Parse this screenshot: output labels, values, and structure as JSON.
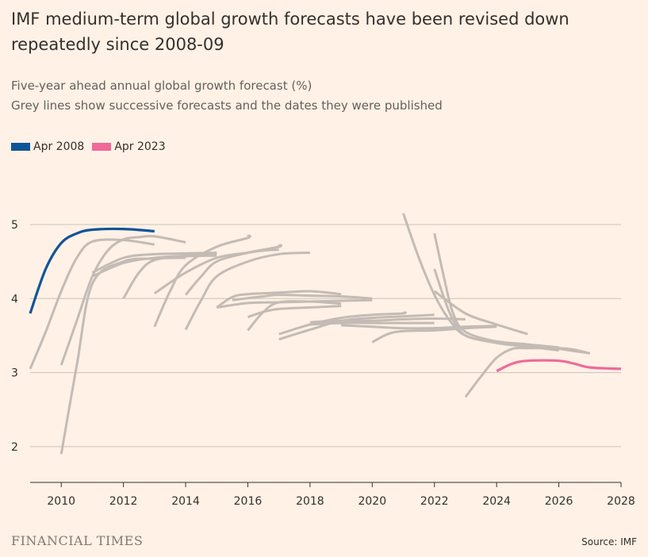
{
  "header": {
    "title": "IMF medium-term global growth forecasts have been revised down repeatedly since 2008-09",
    "subtitle_line1": "Five-year ahead annual global growth forecast (%)",
    "subtitle_line2": "Grey lines show successive forecasts and the dates they were published"
  },
  "footer": {
    "brand": "FINANCIAL TIMES",
    "source": "Source: IMF"
  },
  "colors": {
    "background": "#fff1e5",
    "highlight_first": "#0f5499",
    "highlight_last": "#f0699a",
    "grey_lines": "#c4bbb5",
    "grid": "#ccc1b7"
  },
  "chart_data": {
    "type": "line",
    "title": "IMF medium-term global growth forecasts have been revised down repeatedly since 2008-09",
    "subtitle": "Five-year ahead annual global growth forecast (%)",
    "xlabel": "",
    "ylabel": "",
    "xlim": [
      2009,
      2028
    ],
    "ylim": [
      1.5,
      5.5
    ],
    "x_ticks": [
      2010,
      2012,
      2014,
      2016,
      2018,
      2020,
      2022,
      2024,
      2026,
      2028
    ],
    "y_ticks": [
      2,
      3,
      4,
      5
    ],
    "grid": true,
    "legend": "top-left",
    "legend_entries": [
      {
        "name": "Apr 2008",
        "color": "#0f5499"
      },
      {
        "name": "Apr 2023",
        "color": "#f0699a"
      }
    ],
    "series": [
      {
        "name": "Apr 2008",
        "highlight": true,
        "color": "#0f5499",
        "points": [
          [
            2009,
            3.8
          ],
          [
            2009.5,
            4.4
          ],
          [
            2010,
            4.75
          ],
          [
            2010.5,
            4.88
          ],
          [
            2011,
            4.93
          ],
          [
            2012,
            4.94
          ],
          [
            2013,
            4.91
          ]
        ]
      },
      {
        "name": "Apr 2023",
        "highlight": true,
        "color": "#f0699a",
        "points": [
          [
            2024,
            3.02
          ],
          [
            2024.5,
            3.12
          ],
          [
            2025,
            3.16
          ],
          [
            2026,
            3.16
          ],
          [
            2026.5,
            3.12
          ],
          [
            2027,
            3.07
          ],
          [
            2028,
            3.05
          ]
        ]
      },
      {
        "points": [
          [
            2009,
            3.05
          ],
          [
            2009.5,
            3.55
          ],
          [
            2010,
            4.1
          ],
          [
            2010.5,
            4.55
          ],
          [
            2011,
            4.77
          ],
          [
            2012,
            4.79
          ],
          [
            2013,
            4.73
          ]
        ]
      },
      {
        "points": [
          [
            2010,
            3.1
          ],
          [
            2010.5,
            3.7
          ],
          [
            2011,
            4.3
          ],
          [
            2011.5,
            4.65
          ],
          [
            2012,
            4.8
          ],
          [
            2012.5,
            4.83
          ],
          [
            2013,
            4.84
          ],
          [
            2014,
            4.76
          ]
        ]
      },
      {
        "points": [
          [
            2010,
            1.9
          ],
          [
            2010.5,
            3.1
          ],
          [
            2011,
            4.2
          ],
          [
            2012,
            4.5
          ],
          [
            2013,
            4.54
          ],
          [
            2014,
            4.55
          ]
        ]
      },
      {
        "points": [
          [
            2011,
            4.3
          ],
          [
            2012,
            4.48
          ],
          [
            2013,
            4.55
          ],
          [
            2014,
            4.58
          ],
          [
            2015,
            4.6
          ]
        ]
      },
      {
        "points": [
          [
            2011,
            4.35
          ],
          [
            2012,
            4.55
          ],
          [
            2013,
            4.6
          ],
          [
            2014,
            4.61
          ],
          [
            2015,
            4.62
          ]
        ]
      },
      {
        "points": [
          [
            2012,
            4.0
          ],
          [
            2012.5,
            4.35
          ],
          [
            2013,
            4.52
          ],
          [
            2014,
            4.57
          ],
          [
            2015,
            4.58
          ]
        ]
      },
      {
        "points": [
          [
            2013,
            4.07
          ],
          [
            2014,
            4.35
          ],
          [
            2015,
            4.55
          ],
          [
            2016,
            4.62
          ],
          [
            2016.5,
            4.65
          ],
          [
            2017,
            4.66
          ]
        ]
      },
      {
        "points": [
          [
            2013,
            3.62
          ],
          [
            2013.5,
            4.1
          ],
          [
            2014,
            4.45
          ],
          [
            2015,
            4.7
          ],
          [
            2016,
            4.82
          ],
          [
            2016,
            4.86
          ]
        ]
      },
      {
        "points": [
          [
            2014,
            3.58
          ],
          [
            2014.5,
            3.98
          ],
          [
            2015,
            4.3
          ],
          [
            2016,
            4.5
          ],
          [
            2017,
            4.6
          ],
          [
            2018,
            4.62
          ]
        ]
      },
      {
        "points": [
          [
            2014,
            4.05
          ],
          [
            2014.5,
            4.3
          ],
          [
            2015,
            4.5
          ],
          [
            2016,
            4.62
          ],
          [
            2017,
            4.7
          ],
          [
            2017,
            4.73
          ]
        ]
      },
      {
        "points": [
          [
            2015,
            3.88
          ],
          [
            2015.5,
            4.02
          ],
          [
            2016,
            4.06
          ],
          [
            2017,
            4.08
          ],
          [
            2018,
            4.1
          ],
          [
            2019,
            4.06
          ]
        ]
      },
      {
        "points": [
          [
            2016,
            3.57
          ],
          [
            2016.5,
            3.82
          ],
          [
            2017,
            3.95
          ],
          [
            2018,
            3.96
          ],
          [
            2019,
            3.93
          ]
        ]
      },
      {
        "points": [
          [
            2015,
            3.88
          ],
          [
            2016,
            3.94
          ],
          [
            2017,
            3.95
          ],
          [
            2018,
            3.96
          ],
          [
            2019,
            3.97
          ],
          [
            2020,
            3.98
          ]
        ]
      },
      {
        "points": [
          [
            2015.5,
            3.98
          ],
          [
            2016.5,
            4.03
          ],
          [
            2017,
            4.05
          ],
          [
            2018,
            4.04
          ],
          [
            2019,
            4.03
          ],
          [
            2020,
            4.0
          ]
        ]
      },
      {
        "points": [
          [
            2016,
            3.75
          ],
          [
            2016.5,
            3.82
          ],
          [
            2017,
            3.86
          ],
          [
            2018,
            3.88
          ],
          [
            2019,
            3.9
          ]
        ]
      },
      {
        "points": [
          [
            2017,
            3.45
          ],
          [
            2018,
            3.58
          ],
          [
            2019,
            3.7
          ],
          [
            2020,
            3.74
          ],
          [
            2021,
            3.76
          ],
          [
            2022,
            3.78
          ]
        ]
      },
      {
        "points": [
          [
            2017,
            3.52
          ],
          [
            2018,
            3.65
          ],
          [
            2019,
            3.74
          ],
          [
            2020,
            3.78
          ],
          [
            2021,
            3.8
          ],
          [
            2021,
            3.82
          ]
        ]
      },
      {
        "points": [
          [
            2018,
            3.65
          ],
          [
            2019,
            3.67
          ],
          [
            2020,
            3.67
          ],
          [
            2021,
            3.67
          ],
          [
            2022,
            3.67
          ]
        ]
      },
      {
        "points": [
          [
            2018,
            3.68
          ],
          [
            2019,
            3.7
          ],
          [
            2020,
            3.7
          ],
          [
            2021,
            3.72
          ],
          [
            2022,
            3.73
          ],
          [
            2023,
            3.72
          ]
        ]
      },
      {
        "points": [
          [
            2020,
            3.41
          ],
          [
            2020.5,
            3.52
          ],
          [
            2021,
            3.56
          ],
          [
            2022,
            3.57
          ],
          [
            2023,
            3.6
          ],
          [
            2024,
            3.62
          ]
        ]
      },
      {
        "points": [
          [
            2019,
            3.64
          ],
          [
            2020,
            3.62
          ],
          [
            2021,
            3.6
          ],
          [
            2022,
            3.6
          ],
          [
            2023,
            3.62
          ],
          [
            2024,
            3.63
          ]
        ]
      },
      {
        "points": [
          [
            2021,
            5.15
          ],
          [
            2021.5,
            4.55
          ],
          [
            2022,
            4.05
          ],
          [
            2022.5,
            3.7
          ],
          [
            2023,
            3.5
          ],
          [
            2024,
            3.4
          ],
          [
            2025,
            3.35
          ],
          [
            2026,
            3.3
          ]
        ]
      },
      {
        "points": [
          [
            2022,
            4.88
          ],
          [
            2022.3,
            4.3
          ],
          [
            2022.6,
            3.8
          ],
          [
            2023,
            3.55
          ],
          [
            2024,
            3.42
          ],
          [
            2025,
            3.38
          ],
          [
            2026,
            3.34
          ]
        ]
      },
      {
        "points": [
          [
            2022,
            4.4
          ],
          [
            2022.5,
            3.8
          ],
          [
            2023,
            3.5
          ],
          [
            2024,
            3.42
          ],
          [
            2025,
            3.38
          ],
          [
            2026,
            3.32
          ],
          [
            2027,
            3.26
          ]
        ]
      },
      {
        "points": [
          [
            2022,
            4.1
          ],
          [
            2023,
            3.8
          ],
          [
            2024,
            3.65
          ],
          [
            2025,
            3.52
          ]
        ]
      },
      {
        "points": [
          [
            2023,
            2.67
          ],
          [
            2023.5,
            2.95
          ],
          [
            2024,
            3.2
          ],
          [
            2024.5,
            3.32
          ],
          [
            2025,
            3.33
          ],
          [
            2026,
            3.33
          ],
          [
            2026.5,
            3.31
          ],
          [
            2027,
            3.26
          ]
        ]
      }
    ]
  }
}
